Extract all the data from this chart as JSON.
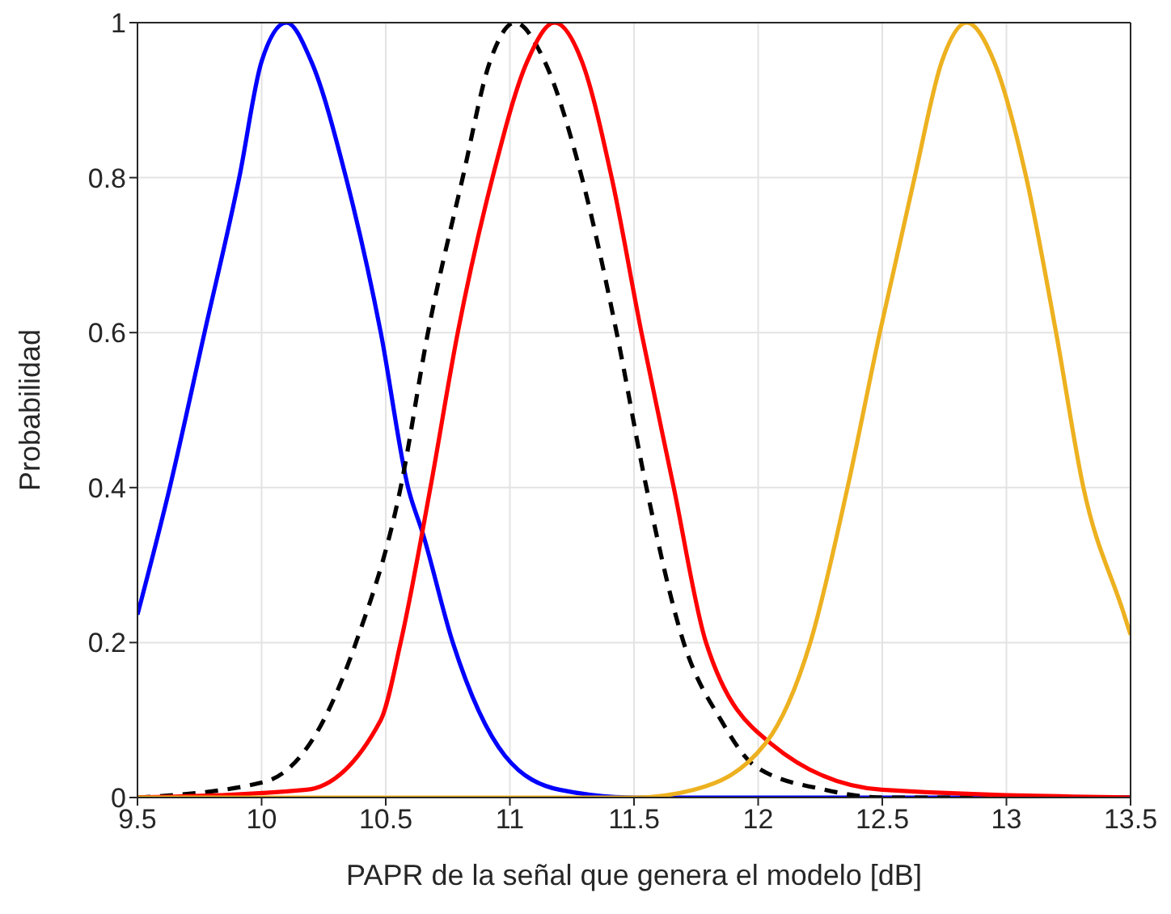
{
  "chart_data": {
    "type": "line",
    "xlabel": "PAPR de la señal que genera el modelo [dB]",
    "ylabel": "Probabilidad",
    "xlim": [
      9.5,
      13.5
    ],
    "xticks": [
      9.5,
      10,
      10.5,
      11,
      11.5,
      12,
      12.5,
      13,
      13.5
    ],
    "ylim": [
      0,
      1
    ],
    "yticks": [
      0,
      0.2,
      0.4,
      0.6,
      0.8,
      1
    ],
    "grid": true,
    "legend": false,
    "marker": "none",
    "series": [
      {
        "color": "#0000ff",
        "line_style": "solid",
        "x": [
          9.5,
          9.63,
          9.77,
          9.91,
          10.0,
          10.1,
          10.2,
          10.34,
          10.48,
          10.59,
          10.65,
          10.77,
          10.98,
          11.2,
          11.5,
          13.5
        ],
        "values": [
          0.236,
          0.4,
          0.6,
          0.8,
          0.95,
          1,
          0.95,
          0.8,
          0.6,
          0.4,
          0.34,
          0.2,
          0.054,
          0.01,
          0,
          0
        ]
      },
      {
        "color": "#000000",
        "line_style": "dashed",
        "x": [
          9.5,
          10.01,
          10.25,
          10.38,
          10.56,
          10.67,
          10.81,
          10.92,
          11.02,
          11.14,
          11.29,
          11.43,
          11.55,
          11.7,
          11.85,
          11.99,
          12.27,
          12.5,
          13.5
        ],
        "values": [
          0,
          0.02,
          0.1,
          0.2,
          0.4,
          0.6,
          0.8,
          0.95,
          1,
          0.95,
          0.8,
          0.6,
          0.4,
          0.2,
          0.1,
          0.04,
          0.01,
          0,
          0
        ]
      },
      {
        "color": "#ff0000",
        "line_style": "solid",
        "x": [
          9.5,
          10.18,
          10.48,
          10.56,
          10.68,
          10.79,
          10.93,
          11.07,
          11.18,
          11.29,
          11.41,
          11.53,
          11.66,
          11.79,
          12.05,
          12.5,
          13.5
        ],
        "values": [
          0,
          0.01,
          0.1,
          0.2,
          0.4,
          0.6,
          0.8,
          0.95,
          1,
          0.95,
          0.8,
          0.6,
          0.4,
          0.2,
          0.07,
          0.01,
          0
        ]
      },
      {
        "color": "#edb120",
        "line_style": "solid",
        "x": [
          9.5,
          11.5,
          11.74,
          12.03,
          12.21,
          12.36,
          12.49,
          12.63,
          12.74,
          12.84,
          12.95,
          13.08,
          13.2,
          13.31,
          13.47,
          13.5
        ],
        "values": [
          0,
          0,
          0.01,
          0.07,
          0.2,
          0.4,
          0.6,
          0.8,
          0.95,
          1,
          0.95,
          0.8,
          0.6,
          0.4,
          0.24,
          0.21
        ]
      }
    ]
  }
}
